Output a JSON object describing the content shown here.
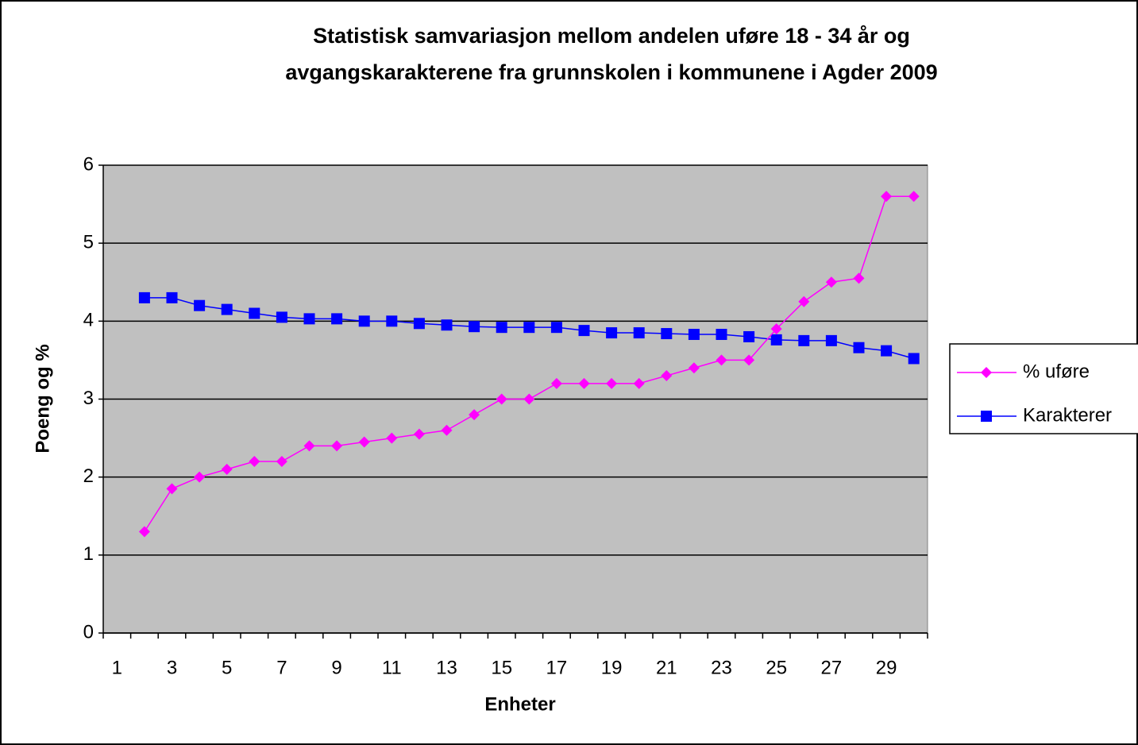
{
  "chart_data": {
    "type": "line",
    "title": [
      "Statistisk samvariasjon  mellom andelen uføre 18  - 34 år og",
      "avgangskarakterene  fra grunnskolen  i kommunene  i Agder 2009"
    ],
    "x_label": "Enheter",
    "y_label": "Poeng og %",
    "categories": [
      "1",
      null,
      "3",
      null,
      "5",
      null,
      "7",
      null,
      "9",
      null,
      "11",
      null,
      "13",
      null,
      "15",
      null,
      "17",
      null,
      "19",
      null,
      "21",
      null,
      "23",
      null,
      "25",
      null,
      "27",
      null,
      "29",
      null
    ],
    "series": [
      {
        "name": "% uføre",
        "color": "#ff00ff",
        "marker": "diamond",
        "values": [
          null,
          1.3,
          1.85,
          2.0,
          2.1,
          2.2,
          2.2,
          2.4,
          2.4,
          2.45,
          2.5,
          2.55,
          2.6,
          2.8,
          3.0,
          3.0,
          3.2,
          3.2,
          3.2,
          3.2,
          3.3,
          3.4,
          3.5,
          3.5,
          3.9,
          4.25,
          4.5,
          4.55,
          5.6,
          5.6
        ]
      },
      {
        "name": "Karakterer",
        "color": "#0000ff",
        "marker": "square",
        "values": [
          null,
          4.3,
          4.3,
          4.2,
          4.15,
          4.1,
          4.05,
          4.03,
          4.03,
          4.0,
          4.0,
          3.97,
          3.95,
          3.93,
          3.92,
          3.92,
          3.92,
          3.88,
          3.85,
          3.85,
          3.84,
          3.83,
          3.83,
          3.8,
          3.76,
          3.75,
          3.75,
          3.66,
          3.62,
          3.52
        ]
      }
    ],
    "ylim": [
      0,
      6
    ],
    "yticks": [
      0,
      1,
      2,
      3,
      4,
      5,
      6
    ],
    "grid": true,
    "legend": "right",
    "plot_background": "#c0c0c0"
  }
}
